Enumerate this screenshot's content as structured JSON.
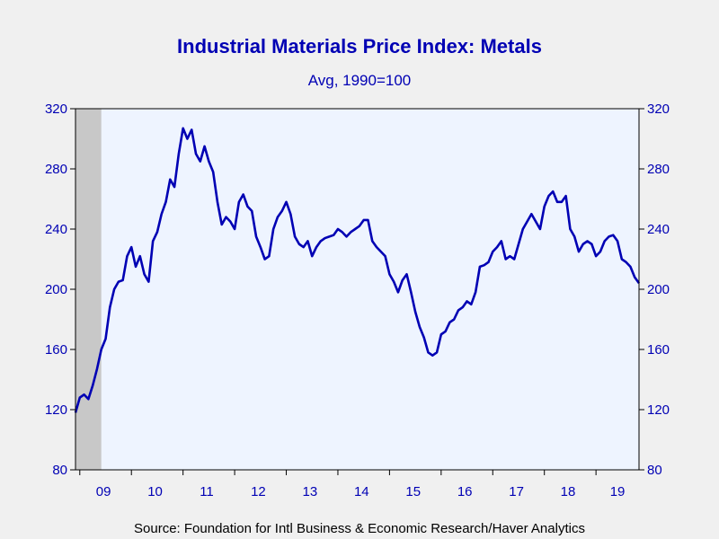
{
  "chart_data": {
    "type": "line",
    "title": "Industrial Materials Price Index: Metals",
    "subtitle": "Avg, 1990=100",
    "source": "Source:  Foundation for Intl Business & Economic Research/Haver Analytics",
    "xlabel": "",
    "ylabel": "",
    "ylim": [
      80,
      320
    ],
    "yticks": [
      80,
      120,
      160,
      200,
      240,
      280,
      320
    ],
    "xlim": [
      "2008-12",
      "2019-11"
    ],
    "xtick_labels": [
      "09",
      "10",
      "11",
      "12",
      "13",
      "14",
      "15",
      "16",
      "17",
      "18",
      "19"
    ],
    "recession_shading": {
      "start": "2008-12",
      "end": "2009-06"
    },
    "grid": false,
    "axes": "left and right",
    "colors": {
      "line": "#0000b4",
      "text": "#0000b4",
      "plot_bg": "#eef4ff",
      "shade": "#c8c8c8"
    },
    "series": [
      {
        "x": [
          "2008-12",
          "2009-01",
          "2009-02",
          "2009-03",
          "2009-04",
          "2009-05",
          "2009-06",
          "2009-07",
          "2009-08",
          "2009-09",
          "2009-10",
          "2009-11",
          "2009-12",
          "2010-01",
          "2010-02",
          "2010-03",
          "2010-04",
          "2010-05",
          "2010-06",
          "2010-07",
          "2010-08",
          "2010-09",
          "2010-10",
          "2010-11",
          "2010-12",
          "2011-01",
          "2011-02",
          "2011-03",
          "2011-04",
          "2011-05",
          "2011-06",
          "2011-07",
          "2011-08",
          "2011-09",
          "2011-10",
          "2011-11",
          "2011-12",
          "2012-01",
          "2012-02",
          "2012-03",
          "2012-04",
          "2012-05",
          "2012-06",
          "2012-07",
          "2012-08",
          "2012-09",
          "2012-10",
          "2012-11",
          "2012-12",
          "2013-01",
          "2013-02",
          "2013-03",
          "2013-04",
          "2013-05",
          "2013-06",
          "2013-07",
          "2013-08",
          "2013-09",
          "2013-10",
          "2013-11",
          "2013-12",
          "2014-01",
          "2014-02",
          "2014-03",
          "2014-04",
          "2014-05",
          "2014-06",
          "2014-07",
          "2014-08",
          "2014-09",
          "2014-10",
          "2014-11",
          "2014-12",
          "2015-01",
          "2015-02",
          "2015-03",
          "2015-04",
          "2015-05",
          "2015-06",
          "2015-07",
          "2015-08",
          "2015-09",
          "2015-10",
          "2015-11",
          "2015-12",
          "2016-01",
          "2016-02",
          "2016-03",
          "2016-04",
          "2016-05",
          "2016-06",
          "2016-07",
          "2016-08",
          "2016-09",
          "2016-10",
          "2016-11",
          "2016-12",
          "2017-01",
          "2017-02",
          "2017-03",
          "2017-04",
          "2017-05",
          "2017-06",
          "2017-07",
          "2017-08",
          "2017-09",
          "2017-10",
          "2017-11",
          "2017-12",
          "2018-01",
          "2018-02",
          "2018-03",
          "2018-04",
          "2018-05",
          "2018-06",
          "2018-07",
          "2018-08",
          "2018-09",
          "2018-10",
          "2018-11",
          "2018-12",
          "2019-01",
          "2019-02",
          "2019-03",
          "2019-04",
          "2019-05",
          "2019-06",
          "2019-07",
          "2019-08",
          "2019-09",
          "2019-10",
          "2019-11"
        ],
        "values": [
          118,
          128,
          130,
          127,
          136,
          147,
          160,
          167,
          188,
          200,
          205,
          206,
          222,
          228,
          215,
          222,
          210,
          205,
          232,
          238,
          250,
          258,
          273,
          268,
          290,
          307,
          300,
          306,
          290,
          285,
          295,
          285,
          278,
          258,
          243,
          248,
          245,
          240,
          258,
          263,
          255,
          252,
          235,
          228,
          220,
          222,
          240,
          248,
          252,
          258,
          250,
          235,
          230,
          228,
          232,
          222,
          228,
          232,
          234,
          235,
          236,
          240,
          238,
          235,
          238,
          240,
          242,
          246,
          246,
          232,
          228,
          225,
          222,
          210,
          205,
          198,
          206,
          210,
          198,
          185,
          175,
          168,
          158,
          156,
          158,
          170,
          172,
          178,
          180,
          186,
          188,
          192,
          190,
          198,
          215,
          216,
          218,
          225,
          228,
          232,
          220,
          222,
          220,
          230,
          240,
          245,
          250,
          245,
          240,
          255,
          262,
          265,
          258,
          258,
          262,
          240,
          235,
          225,
          230,
          232,
          230,
          222,
          225,
          232,
          235,
          236,
          232,
          220,
          218,
          215,
          208,
          204
        ]
      }
    ]
  }
}
